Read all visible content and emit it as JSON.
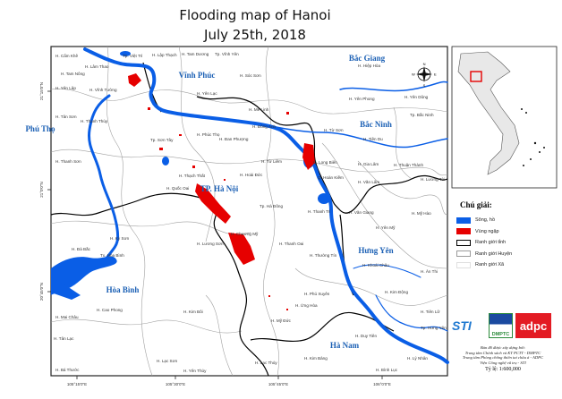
{
  "title": {
    "line1": "Flooding  map of Hanoi",
    "line2": "July 25th, 2018"
  },
  "axes": {
    "x_ticks": [
      "105°15'0\"E",
      "105°30'0\"E",
      "105°45'0\"E",
      "106°0'0\"E"
    ],
    "y_ticks": [
      "21°15'0\"N",
      "21°0'0\"N",
      "20°45'0\"N"
    ]
  },
  "provinces": [
    "Vĩnh Phúc",
    "Bắc Giang",
    "Phú Thọ",
    "Bắc Ninh",
    "TP. Hà Nội",
    "Hưng Yên",
    "Hòa Bình",
    "Hà Nam"
  ],
  "districts": [
    "H. Cẩm Khê",
    "H. Lâm Thao",
    "Tp. Việt Trì",
    "H. Lập Thạch",
    "H. Tam Dương",
    "Tp. Vĩnh Yên",
    "H. Yên Lập",
    "H. Tam Nông",
    "H. Vĩnh Tường",
    "H. Yên Lạc",
    "H. Tân Sơn",
    "H. Thanh Thủy",
    "H. Sóc Sơn",
    "H. Hiệp Hòa",
    "H. Yên Phong",
    "Tp. Bắc Ninh",
    "H. Mê Linh",
    "H. Đông Anh",
    "H. Đan Phượng",
    "H. Từ Sơn",
    "H. Tiên Du",
    "H. Thanh Sơn",
    "Tp. Sơn Tây",
    "H. Phúc Thọ",
    "H. Từ Liêm",
    "Q. Long Biên",
    "H. Gia Lâm",
    "H. Thuận Thành",
    "H. Hoài Đức",
    "H. Quốc Oai",
    "Q. Hoàn Kiếm",
    "H. Thạch Thất",
    "Tp. Hà Đông",
    "H. Thanh Trì",
    "H. Văn Lâm",
    "H. Văn Giang",
    "H. Mỹ Hào",
    "H. Chương Mỹ",
    "H. Lương Sơn",
    "H. Kỳ Sơn",
    "H. Thanh Oai",
    "H. Thường Tín",
    "H. Yên Mỹ",
    "H. Đà Bắc",
    "Tx. Hòa Bình",
    "H. Khoái Châu",
    "H. Phú Xuyên",
    "H. Ứng Hòa",
    "H. Kim Động",
    "H. Cao Phong",
    "H. Kim Bôi",
    "H. Mỹ Đức",
    "H. Tiên Lữ",
    "Tp. Hưng Yên",
    "H. Duy Tiên",
    "H. Mai Châu",
    "H. Tân Lạc",
    "H. Kim Bảng",
    "H. Lạc Sơn",
    "H. Lạc Thủy",
    "H. Lý Nhân",
    "H. Yên Thủy",
    "H. Bình Lục",
    "H. Bá Thước",
    "H. Yên Dũng",
    "H. Lương Tài",
    "H. Ân Thi"
  ],
  "legend": {
    "title": "Chú giải:",
    "items": [
      {
        "label": "Sông, hồ",
        "color": "#0a5ee6"
      },
      {
        "label": "Vùng ngập",
        "color": "#e60000"
      },
      {
        "label": "Ranh giới tỉnh",
        "color": "#000000"
      },
      {
        "label": "Ranh giới Huyện",
        "color": "#9a9a9a"
      },
      {
        "label": "Ranh giới Xã",
        "color": "#e0e0e0"
      }
    ]
  },
  "logos": {
    "sti": "STI",
    "dmptc": "DMPTC",
    "adpc": "adpc"
  },
  "credits": [
    "Bản đồ được xây dựng bởi:",
    "Trung tâm Chính sách và KT PCTT - DMPTC",
    "Trung tâm Phòng chống thiên tai châu á - ADPC",
    "Viện Công nghệ vũ trụ - STI"
  ],
  "scale": "Tỷ lệ: 1:600,000",
  "compass": {
    "n": "N",
    "s": "S",
    "e": "E",
    "w": "W"
  },
  "colors": {
    "water": "#0a5ee6",
    "flood": "#e60000",
    "province_label": "#1a5fb4"
  }
}
